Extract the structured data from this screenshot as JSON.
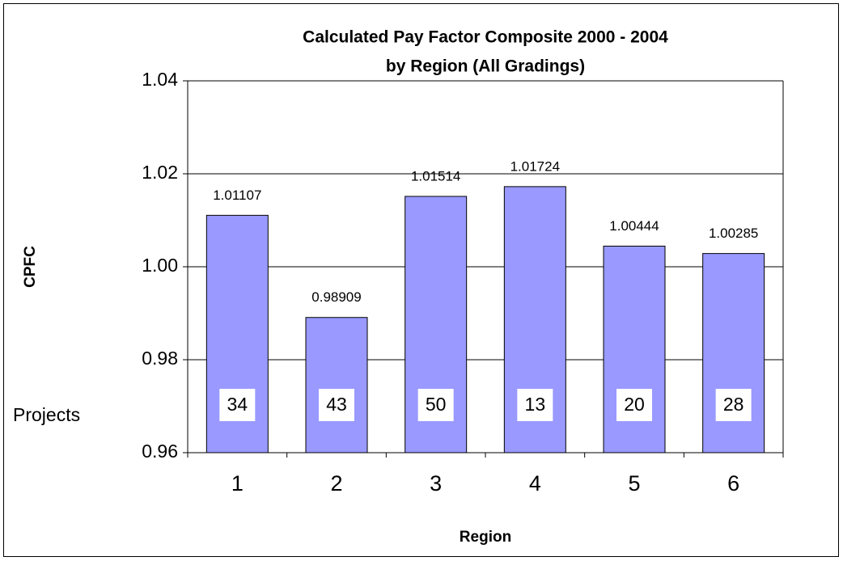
{
  "chart_data": {
    "type": "bar",
    "title": "Calculated Pay Factor Composite 2000 - 2004",
    "subtitle": "by Region  (All Gradings)",
    "x_label": "Region",
    "y_label": "CPFC",
    "categories": [
      "1",
      "2",
      "3",
      "4",
      "5",
      "6"
    ],
    "values": [
      1.01107,
      0.98909,
      1.01514,
      1.01724,
      1.00444,
      1.00285
    ],
    "color": "#9999ff",
    "ylim": [
      0.96,
      1.04
    ],
    "yticks": [
      0.96,
      0.98,
      {
        "value": 1,
        "label": "1.00"
      },
      1.02,
      1.04
    ],
    "grid": true,
    "project_label": "Projects",
    "project_counts": [
      34,
      43,
      50,
      13,
      20,
      28
    ]
  }
}
